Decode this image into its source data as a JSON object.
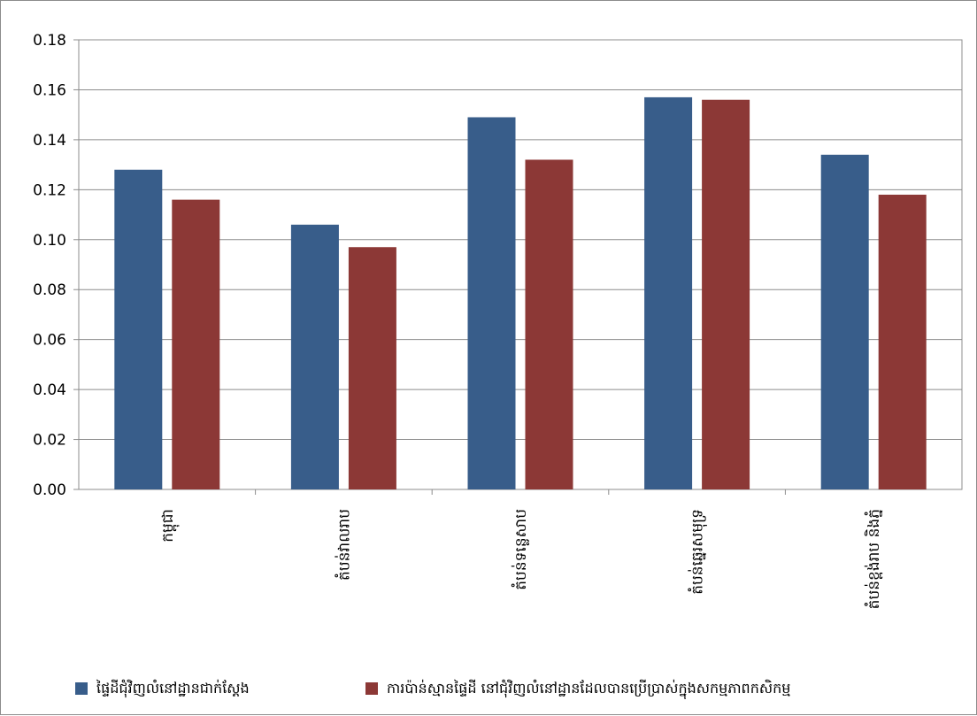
{
  "chart_data": {
    "type": "bar",
    "categories": [
      "កម្ពុជា",
      "តំបន់វាលរាប",
      "តំបន់ទន្លេសាប",
      "តំបន់ឆ្នេរសមុទ្រ",
      "តំបន់ខ្ពង់រាប និងភ្នំ"
    ],
    "series": [
      {
        "name": "ផ្ទៃដីជុំវិញលំនៅដ្ឋានជាក់ស្តែង",
        "color": "#385d8a",
        "values": [
          0.128,
          0.106,
          0.149,
          0.157,
          0.134
        ]
      },
      {
        "name": "ការប៉ាន់ស្មានផ្ទៃដី នៅជុំវិញលំនៅដ្ឋានដែលបានប្រើប្រាស់ក្នុងសកម្មភាពកសិកម្ម",
        "color": "#8c3836",
        "values": [
          0.116,
          0.097,
          0.132,
          0.156,
          0.118
        ]
      }
    ],
    "yticks": [
      "0.00",
      "0.02",
      "0.04",
      "0.06",
      "0.08",
      "0.10",
      "0.12",
      "0.14",
      "0.16",
      "0.18"
    ],
    "ylim": [
      0,
      0.18
    ],
    "grid": true,
    "legend_position": "bottom",
    "title": "",
    "xlabel": "",
    "ylabel": ""
  }
}
